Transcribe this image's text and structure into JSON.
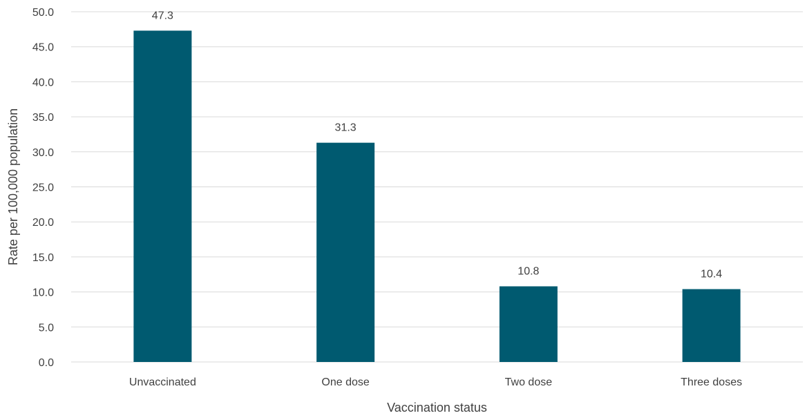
{
  "chart_data": {
    "type": "bar",
    "title": "",
    "xlabel": "Vaccination status",
    "ylabel": "Rate per 100,000 population",
    "categories": [
      "Unvaccinated",
      "One dose",
      "Two dose",
      "Three doses"
    ],
    "series": [
      {
        "values": [
          47.3,
          31.3,
          10.8,
          10.4
        ],
        "color": "#005a70"
      }
    ],
    "data_labels": [
      "47.3",
      "31.3",
      "10.8",
      "10.4"
    ],
    "ylim": [
      0,
      50
    ],
    "yticks": [
      "0.0",
      "5.0",
      "10.0",
      "15.0",
      "20.0",
      "25.0",
      "30.0",
      "35.0",
      "40.0",
      "45.0",
      "50.0"
    ],
    "grid": true,
    "legend": "none",
    "gridline_color": "#d9d9d9"
  }
}
